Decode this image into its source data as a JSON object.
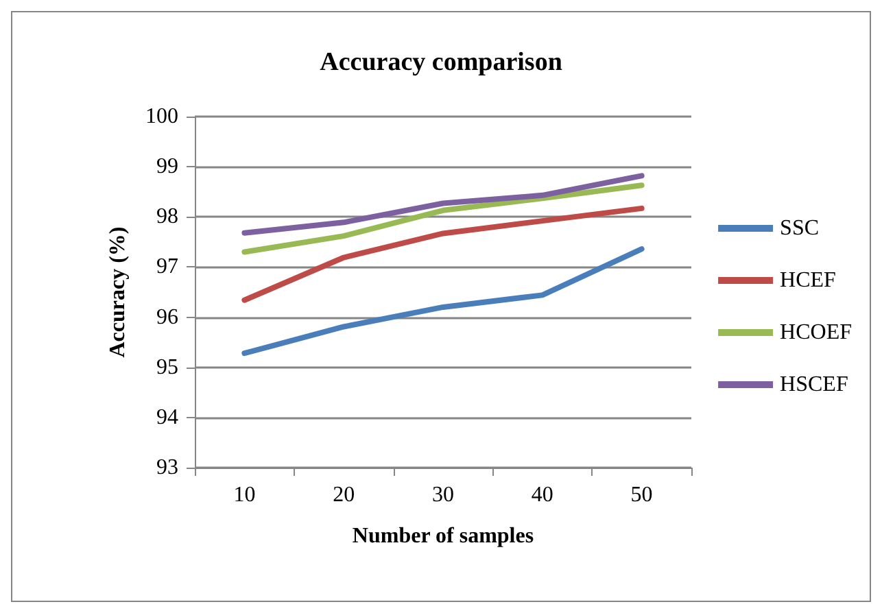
{
  "chart_data": {
    "type": "line",
    "title": "Accuracy comparison",
    "xlabel": "Number of samples",
    "ylabel": "Accuracy (%)",
    "categories": [
      "10",
      "20",
      "30",
      "40",
      "50"
    ],
    "series": [
      {
        "name": "SSC",
        "color": "#4a7ebb",
        "values": [
          95.28,
          95.81,
          96.2,
          96.44,
          97.36
        ]
      },
      {
        "name": "HCEF",
        "color": "#be4b48",
        "values": [
          96.34,
          97.19,
          97.67,
          97.92,
          98.17
        ]
      },
      {
        "name": "HCOEF",
        "color": "#98b954",
        "values": [
          97.3,
          97.62,
          98.13,
          98.37,
          98.63
        ]
      },
      {
        "name": "HSCEF",
        "color": "#7d60a0",
        "values": [
          97.68,
          97.89,
          98.27,
          98.43,
          98.82
        ]
      }
    ],
    "ylim": [
      93,
      100
    ],
    "yticks": [
      93,
      94,
      95,
      96,
      97,
      98,
      99,
      100
    ],
    "grid": "y",
    "legend": "right",
    "marker": "none",
    "line_style": "solid"
  }
}
